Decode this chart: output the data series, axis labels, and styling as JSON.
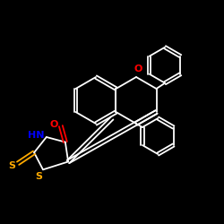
{
  "bg_color": "#000000",
  "bond_color": "#ffffff",
  "atom_colors": {
    "O": "#ff0000",
    "N": "#0000ff",
    "S": "#ffaa00",
    "C": "#ffffff"
  },
  "figsize": [
    2.5,
    2.5
  ],
  "dpi": 100
}
